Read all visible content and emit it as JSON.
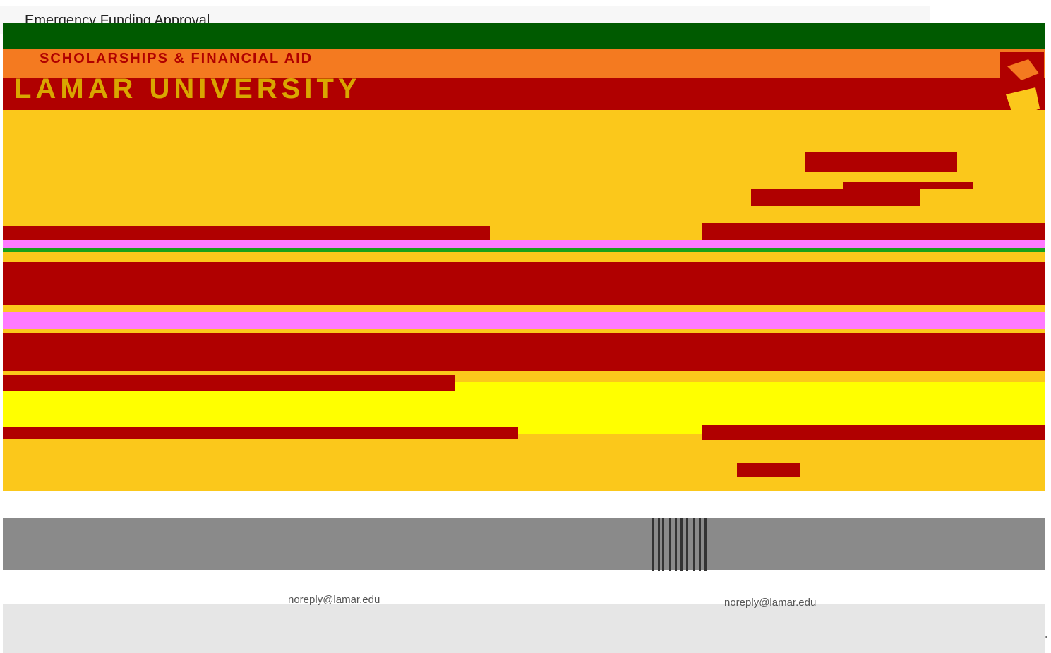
{
  "email": {
    "title": "Emergency Funding Approval",
    "sender": "noreply@lamar.edu",
    "sender_repeat": "noreply@lamar.edu"
  },
  "banner": {
    "department": "SCHOLARSHIPS & FINANCIAL AID",
    "university": "LAMAR UNIVERSITY"
  },
  "colors": {
    "green": "#005a00",
    "orange": "#f47a20",
    "red": "#b00000",
    "gold": "#fbc81b",
    "yellow": "#ffff00",
    "magenta": "#ff7aff",
    "gray": "#8a8a8a"
  },
  "icons": {
    "logo": "lu-logo-icon",
    "barcode": "barcode-icon"
  }
}
